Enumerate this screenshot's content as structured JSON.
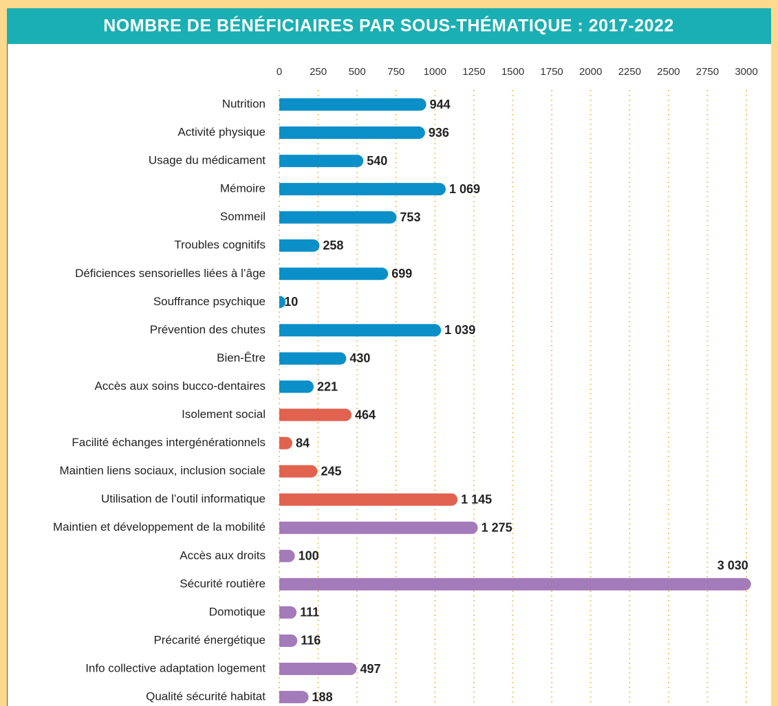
{
  "chart_data": {
    "type": "barh",
    "title": "NOMBRE DE BÉNÉFICIAIRES PAR SOUS-THÉMATIQUE : 2017-2022",
    "categories": [
      "Nutrition",
      "Activité physique",
      "Usage du médicament",
      "Mémoire",
      "Sommeil",
      "Troubles cognitifs",
      "Déficiences sensorielles liées à l’âge",
      "Souffrance psychique",
      "Prévention des chutes",
      "Bien-Être",
      "Accès aux soins bucco-dentaires",
      "Isolement social",
      "Facilité échanges intergénérationnels",
      "Maintien liens sociaux, inclusion sociale",
      "Utilisation de l’outil informatique",
      "Maintien et développement de la mobilité",
      "Accès aux droits",
      "Sécurité routière",
      "Domotique",
      "Précarité énergétique",
      "Info collective adaptation logement",
      "Qualité sécurité habitat"
    ],
    "values": [
      944,
      936,
      540,
      1069,
      753,
      258,
      699,
      10,
      1039,
      430,
      221,
      464,
      84,
      245,
      1145,
      1275,
      100,
      3030,
      111,
      116,
      497,
      188
    ],
    "value_labels": [
      "944",
      "936",
      "540",
      "1 069",
      "753",
      "258",
      "699",
      "10",
      "1 039",
      "430",
      "221",
      "464",
      "84",
      "245",
      "1 145",
      "1 275",
      "100",
      "3 030",
      "111",
      "116",
      "497",
      "188"
    ],
    "colors": [
      "#0a8fc9",
      "#0a8fc9",
      "#0a8fc9",
      "#0a8fc9",
      "#0a8fc9",
      "#0a8fc9",
      "#0a8fc9",
      "#0a8fc9",
      "#0a8fc9",
      "#0a8fc9",
      "#0a8fc9",
      "#e0624f",
      "#e0624f",
      "#e0624f",
      "#e0624f",
      "#a47bba",
      "#a47bba",
      "#a47bba",
      "#a47bba",
      "#a47bba",
      "#a47bba",
      "#a47bba"
    ],
    "xlim": [
      0,
      3000
    ],
    "xticks": [
      0,
      250,
      500,
      750,
      1000,
      1250,
      1500,
      1750,
      2000,
      2250,
      2500,
      2750,
      3000
    ],
    "grid": true
  }
}
